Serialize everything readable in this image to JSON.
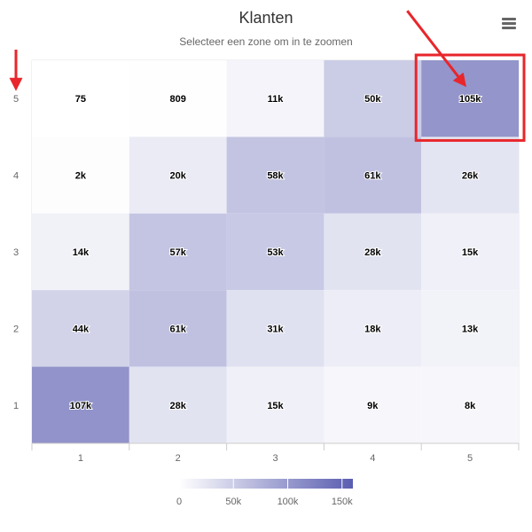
{
  "header": {
    "title": "Klanten",
    "subtitle": "Selecteer een zone om in te zoomen",
    "menu_icon": "hamburger-menu-icon"
  },
  "colors": {
    "min_color": "#ffffff",
    "max_color": "#5a5db0",
    "highlight": "#e8262b",
    "grid_line": "#e6e6e6"
  },
  "chart_data": {
    "type": "heatmap",
    "title": "Klanten",
    "subtitle": "Selecteer een zone om in te zoomen",
    "x_categories": [
      "1",
      "2",
      "3",
      "4",
      "5"
    ],
    "y_categories": [
      "1",
      "2",
      "3",
      "4",
      "5"
    ],
    "value_range": [
      0,
      160000
    ],
    "color_axis_ticks": [
      "0",
      "50k",
      "100k",
      "150k"
    ],
    "color_axis_values": [
      0,
      50000,
      100000,
      150000
    ],
    "legend_position": "bottom",
    "cells": [
      {
        "x": "1",
        "y": "5",
        "value": 75,
        "label": "75"
      },
      {
        "x": "2",
        "y": "5",
        "value": 809,
        "label": "809"
      },
      {
        "x": "3",
        "y": "5",
        "value": 11000,
        "label": "11k"
      },
      {
        "x": "4",
        "y": "5",
        "value": 50000,
        "label": "50k"
      },
      {
        "x": "5",
        "y": "5",
        "value": 105000,
        "label": "105k"
      },
      {
        "x": "1",
        "y": "4",
        "value": 2000,
        "label": "2k"
      },
      {
        "x": "2",
        "y": "4",
        "value": 20000,
        "label": "20k"
      },
      {
        "x": "3",
        "y": "4",
        "value": 58000,
        "label": "58k"
      },
      {
        "x": "4",
        "y": "4",
        "value": 61000,
        "label": "61k"
      },
      {
        "x": "5",
        "y": "4",
        "value": 26000,
        "label": "26k"
      },
      {
        "x": "1",
        "y": "3",
        "value": 14000,
        "label": "14k"
      },
      {
        "x": "2",
        "y": "3",
        "value": 57000,
        "label": "57k"
      },
      {
        "x": "3",
        "y": "3",
        "value": 53000,
        "label": "53k"
      },
      {
        "x": "4",
        "y": "3",
        "value": 28000,
        "label": "28k"
      },
      {
        "x": "5",
        "y": "3",
        "value": 15000,
        "label": "15k"
      },
      {
        "x": "1",
        "y": "2",
        "value": 44000,
        "label": "44k"
      },
      {
        "x": "2",
        "y": "2",
        "value": 61000,
        "label": "61k"
      },
      {
        "x": "3",
        "y": "2",
        "value": 31000,
        "label": "31k"
      },
      {
        "x": "4",
        "y": "2",
        "value": 18000,
        "label": "18k"
      },
      {
        "x": "5",
        "y": "2",
        "value": 13000,
        "label": "13k"
      },
      {
        "x": "1",
        "y": "1",
        "value": 107000,
        "label": "107k"
      },
      {
        "x": "2",
        "y": "1",
        "value": 28000,
        "label": "28k"
      },
      {
        "x": "3",
        "y": "1",
        "value": 15000,
        "label": "15k"
      },
      {
        "x": "4",
        "y": "1",
        "value": 9000,
        "label": "9k"
      },
      {
        "x": "5",
        "y": "1",
        "value": 8000,
        "label": "8k"
      }
    ],
    "annotations": [
      {
        "type": "highlight-box",
        "target_x": "5",
        "target_y": "5"
      },
      {
        "type": "arrow",
        "target_x": "5",
        "target_y": "5"
      },
      {
        "type": "arrow",
        "target_y_axis_label": "5"
      }
    ]
  }
}
